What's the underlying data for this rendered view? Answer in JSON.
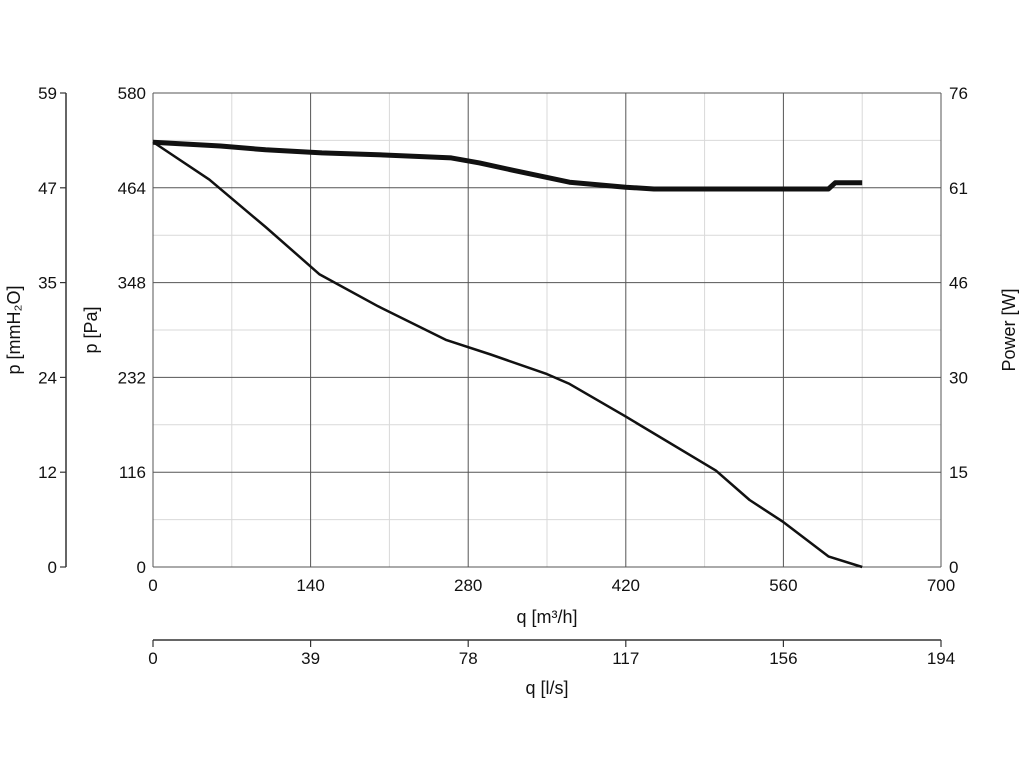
{
  "chart_data": {
    "type": "line",
    "x": {
      "label": "q [m³/h]",
      "range": [
        0,
        700
      ],
      "ticks": [
        "0",
        "140",
        "280",
        "420",
        "560",
        "700"
      ]
    },
    "x_secondary": {
      "label": "q [l/s]",
      "range": [
        0,
        194
      ],
      "ticks": [
        "0",
        "39",
        "78",
        "117",
        "156",
        "194"
      ]
    },
    "y_left": {
      "label": "p [Pa]",
      "range": [
        0,
        580
      ],
      "ticks": [
        "0",
        "116",
        "232",
        "348",
        "464",
        "580"
      ]
    },
    "y_left_outer": {
      "label": "p [mmH₂O]",
      "range": [
        0,
        59
      ],
      "ticks": [
        "0",
        "12",
        "24",
        "35",
        "47",
        "59"
      ]
    },
    "y_right": {
      "label": "Power [W]",
      "range": [
        0,
        76
      ],
      "ticks": [
        "0",
        "15",
        "30",
        "46",
        "61",
        "76"
      ]
    },
    "grid": true,
    "series": [
      {
        "axis": "y_left",
        "style": "thin",
        "points": [
          [
            0,
            520
          ],
          [
            50,
            474
          ],
          [
            100,
            416
          ],
          [
            148,
            358
          ],
          [
            200,
            319
          ],
          [
            260,
            278
          ],
          [
            300,
            260
          ],
          [
            350,
            236
          ],
          [
            370,
            224
          ],
          [
            420,
            184
          ],
          [
            500,
            118
          ],
          [
            530,
            82
          ],
          [
            560,
            55
          ],
          [
            580,
            34
          ],
          [
            600,
            13
          ],
          [
            630,
            0
          ]
        ]
      },
      {
        "axis": "y_right",
        "style": "thick",
        "points": [
          [
            0,
            68.1
          ],
          [
            60,
            67.5
          ],
          [
            100,
            66.9
          ],
          [
            150,
            66.4
          ],
          [
            200,
            66.1
          ],
          [
            265,
            65.6
          ],
          [
            290,
            64.8
          ],
          [
            320,
            63.6
          ],
          [
            370,
            61.7
          ],
          [
            420,
            60.9
          ],
          [
            445,
            60.6
          ],
          [
            500,
            60.6
          ],
          [
            600,
            60.6
          ],
          [
            606,
            61.6
          ],
          [
            630,
            61.6
          ]
        ]
      }
    ]
  }
}
